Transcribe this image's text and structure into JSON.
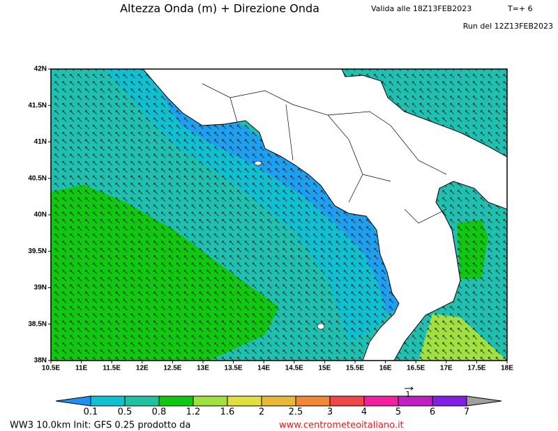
{
  "header": {
    "title": "Altezza Onda (m) + Direzione Onda",
    "valid": "Valida alle 18Z13FEB2023",
    "step": "T=+ 6",
    "run": "Run del 12Z13FEB2023"
  },
  "map": {
    "lat_labels": [
      "38N",
      "38.5N",
      "39N",
      "39.5N",
      "40N",
      "40.5N",
      "41N",
      "41.5N",
      "42N"
    ],
    "lon_labels": [
      "10.5E",
      "11E",
      "11.5E",
      "12E",
      "12.5E",
      "13E",
      "13.5E",
      "14E",
      "14.5E",
      "15E",
      "15.5E",
      "16E",
      "16.5E",
      "17E",
      "17.5E",
      "18E"
    ]
  },
  "colorbar": {
    "levels": [
      "0.1",
      "0.5",
      "0.8",
      "1.2",
      "1.6",
      "2",
      "2.5",
      "3",
      "4",
      "5",
      "6",
      "7"
    ],
    "colors": [
      "#1e90f0",
      "#10c0d0",
      "#20c0a0",
      "#10c810",
      "#a0e040",
      "#e0e040",
      "#e8b838",
      "#f08838",
      "#f04848",
      "#f020a0",
      "#c020c0",
      "#8020e0",
      "#a0a0a0"
    ],
    "scale_arrow_label": "1"
  },
  "footer": {
    "model": "WW3 10.0km Init: GFS 0.25 prodotto da",
    "website": "www.centrometeoitaliano.it"
  }
}
